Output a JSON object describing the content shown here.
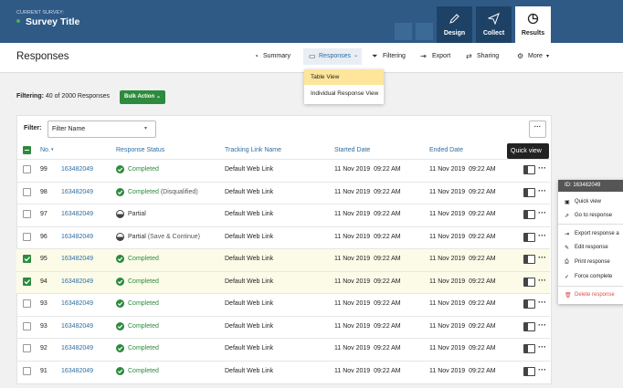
{
  "header": {
    "survey_label": "CURRENT SURVEY:",
    "survey_title": "Survey Title",
    "tabs": [
      "Design",
      "Collect",
      "Results"
    ]
  },
  "toolbar": {
    "title": "Responses",
    "items": [
      "Summary",
      "Responses",
      "Filtering",
      "Export",
      "Sharing",
      "More"
    ]
  },
  "dropdown": {
    "items": [
      "Table View",
      "Individual Response View"
    ]
  },
  "filter_bar": {
    "label": "Filtering:",
    "count": "40 of 2000 Responses",
    "bulk_action": "Bulk Action"
  },
  "table": {
    "filter_label": "Filter:",
    "filter_placeholder": "Filter Name",
    "headers": [
      "No.",
      "Response Status",
      "Tracking Link Name",
      "Started Date",
      "Ended Date"
    ],
    "tooltip": "Quick view",
    "rows": [
      {
        "no": "99",
        "id": "163482049",
        "status": "Completed",
        "note": null,
        "icon": "check",
        "checked": false,
        "link": "Default Web Link",
        "started": "11 Nov 2019  09:22 AM",
        "ended": "11 Nov 2019  09:22 AM"
      },
      {
        "no": "98",
        "id": "163482049",
        "status": "Completed",
        "note": "(Disqualified)",
        "icon": "check",
        "checked": false,
        "link": "Default Web Link",
        "started": "11 Nov 2019  09:22 AM",
        "ended": "11 Nov 2019  09:22 AM"
      },
      {
        "no": "97",
        "id": "163482049",
        "status": "Partial",
        "note": null,
        "icon": "half",
        "checked": false,
        "link": "Default Web Link",
        "started": "11 Nov 2019  09:22 AM",
        "ended": "11 Nov 2019  09:22 AM"
      },
      {
        "no": "96",
        "id": "163482049",
        "status": "Partial",
        "note": "(Save & Continue)",
        "icon": "half",
        "checked": false,
        "link": "Default Web Link",
        "started": "11 Nov 2019  09:22 AM",
        "ended": "11 Nov 2019  09:22 AM"
      },
      {
        "no": "95",
        "id": "163482049",
        "status": "Completed",
        "note": null,
        "icon": "check",
        "checked": true,
        "link": "Default Web Link",
        "started": "11 Nov 2019  09:22 AM",
        "ended": "11 Nov 2019  09:22 AM"
      },
      {
        "no": "94",
        "id": "163482049",
        "status": "Completed",
        "note": null,
        "icon": "check",
        "checked": true,
        "link": "Default Web Link",
        "started": "11 Nov 2019  09:22 AM",
        "ended": "11 Nov 2019  09:22 AM"
      },
      {
        "no": "93",
        "id": "163482049",
        "status": "Completed",
        "note": null,
        "icon": "check",
        "checked": false,
        "link": "Default Web Link",
        "started": "11 Nov 2019  09:22 AM",
        "ended": "11 Nov 2019  09:22 AM"
      },
      {
        "no": "93",
        "id": "163482049",
        "status": "Completed",
        "note": null,
        "icon": "check",
        "checked": false,
        "link": "Default Web Link",
        "started": "11 Nov 2019  09:22 AM",
        "ended": "11 Nov 2019  09:22 AM"
      },
      {
        "no": "92",
        "id": "163482049",
        "status": "Completed",
        "note": null,
        "icon": "check",
        "checked": false,
        "link": "Default Web Link",
        "started": "11 Nov 2019  09:22 AM",
        "ended": "11 Nov 2019  09:22 AM"
      },
      {
        "no": "91",
        "id": "163482049",
        "status": "Completed",
        "note": null,
        "icon": "check",
        "checked": false,
        "link": "Default Web Link",
        "started": "11 Nov 2019  09:22 AM",
        "ended": "11 Nov 2019  09:22 AM"
      }
    ]
  },
  "context_menu": {
    "title": "ID: 163482049",
    "items": [
      "Quick view",
      "Go to response",
      "Export response a",
      "Edit response",
      "Print response",
      "Force complete",
      "Delete response"
    ]
  }
}
